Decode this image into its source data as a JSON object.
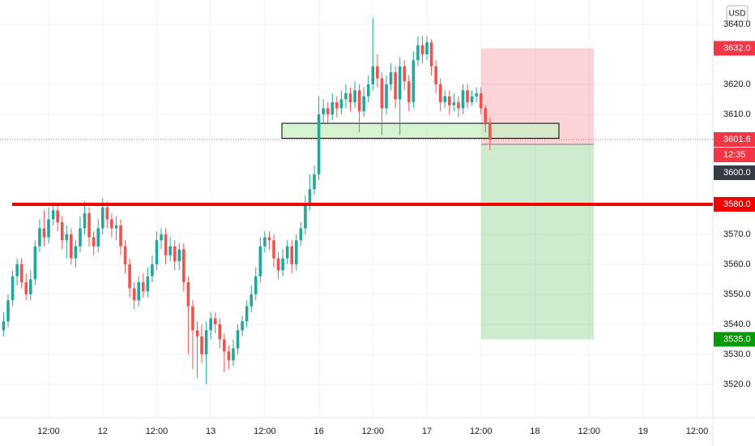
{
  "chart_data": {
    "type": "candlestick",
    "currency": "USD",
    "up_color": "#26a69a",
    "down_color": "#ef5350",
    "grid": true,
    "xlim": [
      -0.8,
      157.5
    ],
    "ylim": [
      3508.9,
      3648.1
    ],
    "xticks": [
      {
        "value": 10,
        "label": "12:00"
      },
      {
        "value": 22,
        "label": "12"
      },
      {
        "value": 34,
        "label": "12:00"
      },
      {
        "value": 46,
        "label": "13"
      },
      {
        "value": 58,
        "label": "12:00"
      },
      {
        "value": 70,
        "label": "16"
      },
      {
        "value": 82,
        "label": "12:00"
      },
      {
        "value": 94,
        "label": "17"
      },
      {
        "value": 106,
        "label": "12:00"
      },
      {
        "value": 118,
        "label": "18"
      },
      {
        "value": 130,
        "label": "12:00"
      },
      {
        "value": 142,
        "label": "19"
      },
      {
        "value": 154,
        "label": "12:00"
      }
    ],
    "yticks": [
      {
        "value": 3520,
        "label": "3520.0"
      },
      {
        "value": 3530,
        "label": "3530.0"
      },
      {
        "value": 3540,
        "label": "3540.0"
      },
      {
        "value": 3550,
        "label": "3550.0"
      },
      {
        "value": 3560,
        "label": "3560.0"
      },
      {
        "value": 3570,
        "label": "3570.0"
      },
      {
        "value": 3610,
        "label": "3610.0"
      },
      {
        "value": 3620,
        "label": "3620.0"
      },
      {
        "value": 3640,
        "label": "3640.0"
      }
    ],
    "open": [
      3538,
      3541,
      3548,
      3556,
      3560,
      3554,
      3550,
      3555,
      3566,
      3572,
      3569,
      3575,
      3578,
      3574,
      3568,
      3570,
      3562,
      3566,
      3572,
      3577,
      3569,
      3566,
      3572,
      3579,
      3575,
      3572,
      3573,
      3566,
      3560,
      3552,
      3548,
      3554,
      3551,
      3556,
      3560,
      3568,
      3570,
      3563,
      3566,
      3561,
      3565,
      3554,
      3546,
      3538,
      3536,
      3530,
      3538,
      3542,
      3540,
      3535,
      3531,
      3528,
      3532,
      3538,
      3541,
      3546,
      3550,
      3556,
      3566,
      3569,
      3568,
      3562,
      3558,
      3562,
      3566,
      3560,
      3568,
      3572,
      3580,
      3585,
      3590,
      3610,
      3612,
      3610,
      3614,
      3612,
      3615,
      3617,
      3614,
      3618,
      3611,
      3616,
      3620,
      3626,
      3622,
      3612,
      3620,
      3624,
      3615,
      3626,
      3621,
      3614,
      3628,
      3633,
      3630,
      3634,
      3626,
      3620,
      3614,
      3616,
      3613,
      3614,
      3612,
      3618,
      3614,
      3616,
      3617,
      3612,
      3607
    ],
    "close": [
      3541,
      3548,
      3556,
      3560,
      3554,
      3550,
      3555,
      3566,
      3572,
      3569,
      3575,
      3578,
      3574,
      3568,
      3570,
      3562,
      3566,
      3572,
      3577,
      3569,
      3566,
      3572,
      3579,
      3575,
      3572,
      3573,
      3566,
      3560,
      3552,
      3548,
      3554,
      3551,
      3556,
      3560,
      3568,
      3570,
      3563,
      3566,
      3561,
      3565,
      3554,
      3546,
      3538,
      3536,
      3530,
      3538,
      3542,
      3540,
      3535,
      3531,
      3528,
      3532,
      3538,
      3541,
      3546,
      3550,
      3556,
      3566,
      3569,
      3568,
      3562,
      3558,
      3562,
      3566,
      3560,
      3568,
      3572,
      3580,
      3585,
      3590,
      3610,
      3612,
      3610,
      3614,
      3612,
      3615,
      3617,
      3614,
      3618,
      3611,
      3616,
      3620,
      3626,
      3622,
      3612,
      3620,
      3624,
      3615,
      3626,
      3621,
      3614,
      3628,
      3633,
      3630,
      3634,
      3626,
      3620,
      3614,
      3616,
      3613,
      3614,
      3612,
      3618,
      3614,
      3616,
      3617,
      3612,
      3607,
      3601.6
    ],
    "high": [
      3544,
      3550,
      3558,
      3562,
      3562,
      3557,
      3558,
      3568,
      3575,
      3578,
      3579,
      3580,
      3580,
      3576,
      3573,
      3572,
      3568,
      3576,
      3581,
      3579,
      3571,
      3575,
      3582,
      3581,
      3577,
      3576,
      3575,
      3568,
      3562,
      3554,
      3556,
      3557,
      3559,
      3563,
      3571,
      3572,
      3572,
      3569,
      3568,
      3567,
      3567,
      3556,
      3548,
      3541,
      3540,
      3541,
      3544,
      3544,
      3542,
      3537,
      3533,
      3535,
      3540,
      3543,
      3548,
      3553,
      3559,
      3569,
      3571,
      3571,
      3570,
      3564,
      3565,
      3568,
      3568,
      3570,
      3574,
      3583,
      3590,
      3593,
      3616,
      3615,
      3614,
      3617,
      3616,
      3618,
      3620,
      3619,
      3621,
      3620,
      3619,
      3623,
      3642,
      3630,
      3624,
      3623,
      3627,
      3626,
      3629,
      3628,
      3623,
      3631,
      3636,
      3636,
      3636,
      3635,
      3628,
      3622,
      3618,
      3618,
      3617,
      3616,
      3620,
      3620,
      3618,
      3619,
      3619,
      3613,
      3609
    ],
    "low": [
      3536,
      3539,
      3546,
      3553,
      3552,
      3548,
      3548,
      3553,
      3564,
      3566,
      3567,
      3573,
      3571,
      3565,
      3562,
      3560,
      3559,
      3564,
      3570,
      3566,
      3563,
      3564,
      3570,
      3572,
      3569,
      3568,
      3563,
      3557,
      3549,
      3545,
      3546,
      3549,
      3549,
      3554,
      3558,
      3565,
      3560,
      3561,
      3558,
      3558,
      3551,
      3530,
      3525,
      3522,
      3527,
      3520,
      3535,
      3537,
      3532,
      3524,
      3525,
      3526,
      3530,
      3536,
      3539,
      3544,
      3548,
      3554,
      3564,
      3565,
      3559,
      3555,
      3556,
      3560,
      3557,
      3558,
      3566,
      3570,
      3578,
      3583,
      3588,
      3607,
      3607,
      3608,
      3609,
      3610,
      3612,
      3611,
      3612,
      3604,
      3609,
      3614,
      3618,
      3619,
      3603,
      3610,
      3618,
      3612,
      3603,
      3618,
      3611,
      3612,
      3626,
      3627,
      3628,
      3623,
      3617,
      3611,
      3612,
      3610,
      3611,
      3609,
      3610,
      3612,
      3613,
      3614,
      3610,
      3604,
      3598
    ],
    "hline": {
      "value": 3580,
      "label": "3580.0",
      "color": "#f20000"
    },
    "zone": {
      "top": 3607,
      "bottom": 3602
    },
    "position": {
      "entry": {
        "value": 3600,
        "label": "3600.0"
      },
      "stop": {
        "value": 3632,
        "label": "3632.0"
      },
      "target": {
        "value": 3535,
        "label": "3535.0"
      }
    },
    "last_price": {
      "value": 3601.6,
      "label": "3601.6",
      "countdown": "12:35"
    }
  }
}
